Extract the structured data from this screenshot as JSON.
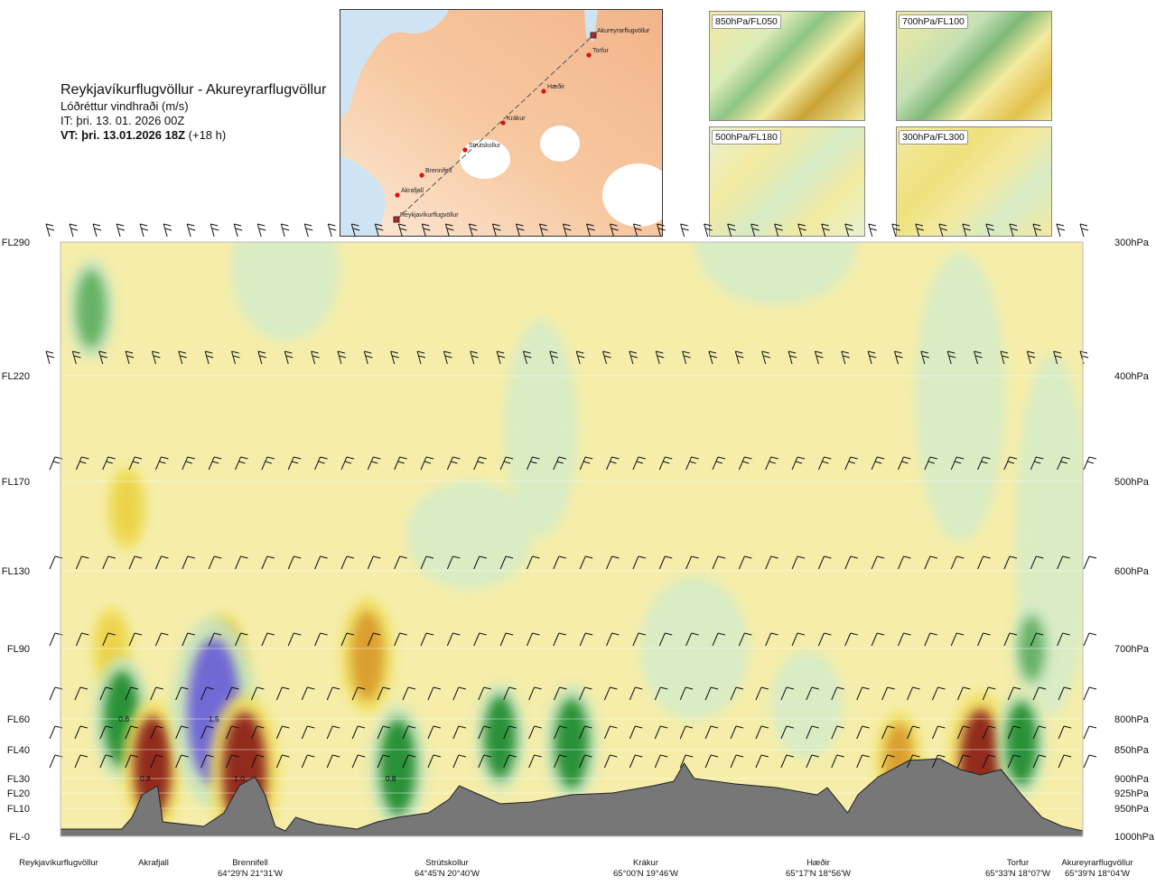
{
  "title": {
    "route": "Reykjavíkurflugvöllur - Akureyrarflugvöllur",
    "variable": "Lóðréttur vindhraði (m/s)",
    "issue_time": "IT: þri. 13. 01. 2026 00Z",
    "valid_time_label": "VT: þri. 13.01.2026 18Z",
    "valid_offset": "(+18 h)"
  },
  "route_map": {
    "waypoints": [
      {
        "name": "Akureyrarflugvöllur"
      },
      {
        "name": "Torfur"
      },
      {
        "name": "Hæðir"
      },
      {
        "name": "Krákur"
      },
      {
        "name": "Strútskollur"
      },
      {
        "name": "Brennifell"
      },
      {
        "name": "Akrafjall"
      },
      {
        "name": "Reykjavíkurflugvöllur"
      }
    ]
  },
  "level_maps": [
    {
      "label": "850hPa/FL050"
    },
    {
      "label": "700hPa/FL100"
    },
    {
      "label": "500hPa/FL180"
    },
    {
      "label": "300hPa/FL300"
    }
  ],
  "chart_data": {
    "type": "heatmap",
    "title": "Reykjavíkurflugvöllur - Akureyrarflugvöllur",
    "subtitle": "Lóðréttur vindhraði (m/s)",
    "y_left_ticks": [
      {
        "label": "FL290",
        "hpa": 300
      },
      {
        "label": "FL220",
        "hpa": 400
      },
      {
        "label": "FL170",
        "hpa": 500
      },
      {
        "label": "FL130",
        "hpa": 600
      },
      {
        "label": "FL90",
        "hpa": 700
      },
      {
        "label": "FL60",
        "hpa": 800
      },
      {
        "label": "FL40",
        "hpa": 850
      },
      {
        "label": "FL30",
        "hpa": 900
      },
      {
        "label": "FL20",
        "hpa": 925
      },
      {
        "label": "FL10",
        "hpa": 950
      },
      {
        "label": "FL-0",
        "hpa": 1000
      }
    ],
    "y_right_ticks": [
      "300hPa",
      "400hPa",
      "500hPa",
      "600hPa",
      "700hPa",
      "800hPa",
      "850hPa",
      "900hPa",
      "925hPa",
      "950hPa",
      "1000hPa"
    ],
    "x_locations": [
      {
        "name": "Reykjavíkurflugvöllur",
        "coord": "",
        "frac": 0.0
      },
      {
        "name": "Akrafjall",
        "coord": "",
        "frac": 0.085
      },
      {
        "name": "Brennifell",
        "coord": "64°29'N 21°31'W",
        "frac": 0.185
      },
      {
        "name": "Strútskollur",
        "coord": "64°45'N 20°40'W",
        "frac": 0.375
      },
      {
        "name": "Krákur",
        "coord": "65°00'N 19°46'W",
        "frac": 0.57
      },
      {
        "name": "Hæðir",
        "coord": "65°17'N 18°56'W",
        "frac": 0.765
      },
      {
        "name": "Torfur",
        "coord": "65°33'N 18°07'W",
        "frac": 0.965
      },
      {
        "name": "Akureyrarflugvöllur",
        "coord": "65°39'N 18°04'W",
        "frac": 1.0
      }
    ],
    "value_labels": [
      {
        "text": "0.6",
        "frac": 0.062,
        "hpa": 800
      },
      {
        "text": "1.5",
        "frac": 0.15,
        "hpa": 800
      },
      {
        "text": "0.8",
        "frac": 0.083,
        "hpa": 900
      },
      {
        "text": "1.0",
        "frac": 0.175,
        "hpa": 900
      },
      {
        "text": "0.8",
        "frac": 0.323,
        "hpa": 900
      }
    ],
    "cells": [
      {
        "frac": 0.03,
        "hpa": 350,
        "value": -0.5
      },
      {
        "frac": 0.065,
        "hpa": 530,
        "value": 0.3
      },
      {
        "frac": 0.05,
        "hpa": 700,
        "value": 0.3
      },
      {
        "frac": 0.06,
        "hpa": 800,
        "value": -0.8
      },
      {
        "frac": 0.09,
        "hpa": 880,
        "value": 0.9
      },
      {
        "frac": 0.16,
        "hpa": 720,
        "value": 0.5
      },
      {
        "frac": 0.15,
        "hpa": 790,
        "value": -1.6
      },
      {
        "frac": 0.18,
        "hpa": 890,
        "value": 1.2
      },
      {
        "frac": 0.3,
        "hpa": 710,
        "value": 0.7
      },
      {
        "frac": 0.33,
        "hpa": 880,
        "value": -0.8
      },
      {
        "frac": 0.43,
        "hpa": 830,
        "value": -0.6
      },
      {
        "frac": 0.5,
        "hpa": 840,
        "value": -0.7
      },
      {
        "frac": 0.82,
        "hpa": 870,
        "value": 0.5
      },
      {
        "frac": 0.9,
        "hpa": 880,
        "value": 1.1
      },
      {
        "frac": 0.94,
        "hpa": 840,
        "value": -0.6
      },
      {
        "frac": 0.95,
        "hpa": 700,
        "value": -0.3
      }
    ]
  }
}
